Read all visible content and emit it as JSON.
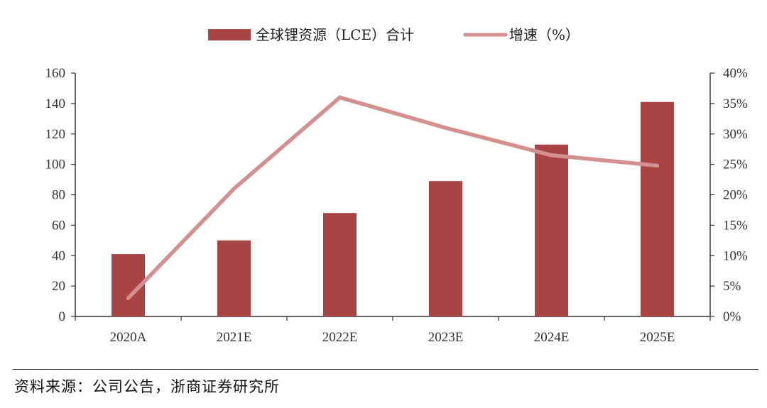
{
  "chart_data": {
    "type": "bar",
    "categories": [
      "2020A",
      "2021E",
      "2022E",
      "2023E",
      "2024E",
      "2025E"
    ],
    "series": [
      {
        "name": "全球锂资源（LCE）合计",
        "type": "bar",
        "axis": "left",
        "values": [
          41,
          50,
          68,
          89,
          113,
          141
        ],
        "color": "#A84444"
      },
      {
        "name": "增速（%）",
        "type": "line",
        "axis": "right",
        "values": [
          3.0,
          21.0,
          36.0,
          31.0,
          26.5,
          24.8
        ],
        "color": "#D4908E"
      }
    ],
    "ylim": [
      0,
      160
    ],
    "yticks": [
      0,
      20,
      40,
      60,
      80,
      100,
      120,
      140,
      160
    ],
    "y2lim": [
      0,
      40
    ],
    "y2ticks": [
      "0%",
      "5%",
      "10%",
      "15%",
      "20%",
      "25%",
      "30%",
      "35%",
      "40%"
    ],
    "legend_position": "top-center",
    "grid": false
  },
  "source": "资料来源：公司公告，浙商证券研究所"
}
